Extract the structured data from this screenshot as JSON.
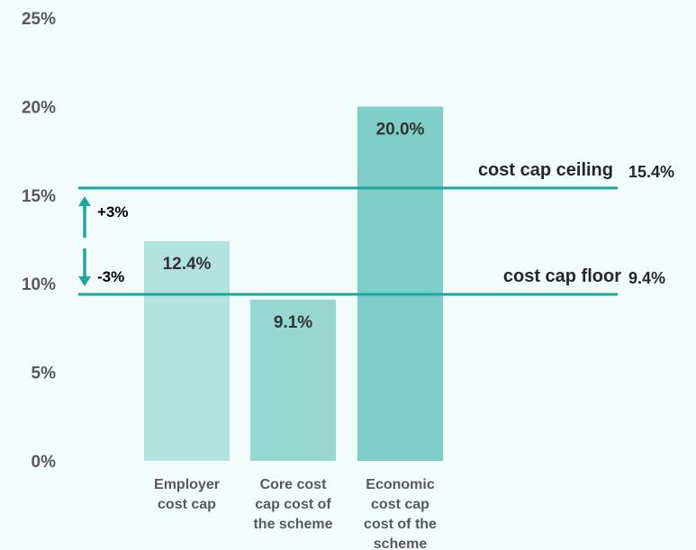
{
  "chart_data": {
    "type": "bar",
    "title": "",
    "xlabel": "",
    "ylabel": "",
    "categories": [
      [
        "Employer",
        "cost cap"
      ],
      [
        "Core cost",
        "cap cost of",
        "the scheme"
      ],
      [
        "Economic",
        "cost cap",
        "cost of the",
        "scheme"
      ]
    ],
    "values": [
      12.4,
      9.1,
      20.0
    ],
    "value_labels": [
      "12.4%",
      "9.1%",
      "20.0%"
    ],
    "bar_colors": [
      "#b2e3df",
      "#98d8d3",
      "#7ecdc6"
    ],
    "ylim": [
      0,
      25
    ],
    "yticks": [
      0,
      5,
      10,
      15,
      20,
      25
    ],
    "ytick_labels": [
      "0%",
      "5%",
      "10%",
      "15%",
      "20%",
      "25%"
    ],
    "grid": false,
    "reference_lines": [
      {
        "label": "cost cap ceiling",
        "value": 15.4,
        "value_label": "15.4%",
        "color": "#1ea79c"
      },
      {
        "label": "cost cap floor",
        "value": 9.4,
        "value_label": "9.4%",
        "color": "#1ea79c"
      }
    ],
    "arrows": [
      {
        "label": "+3%",
        "direction": "up",
        "color": "#1ea79c"
      },
      {
        "label": "-3%",
        "direction": "down",
        "color": "#1ea79c"
      }
    ]
  }
}
